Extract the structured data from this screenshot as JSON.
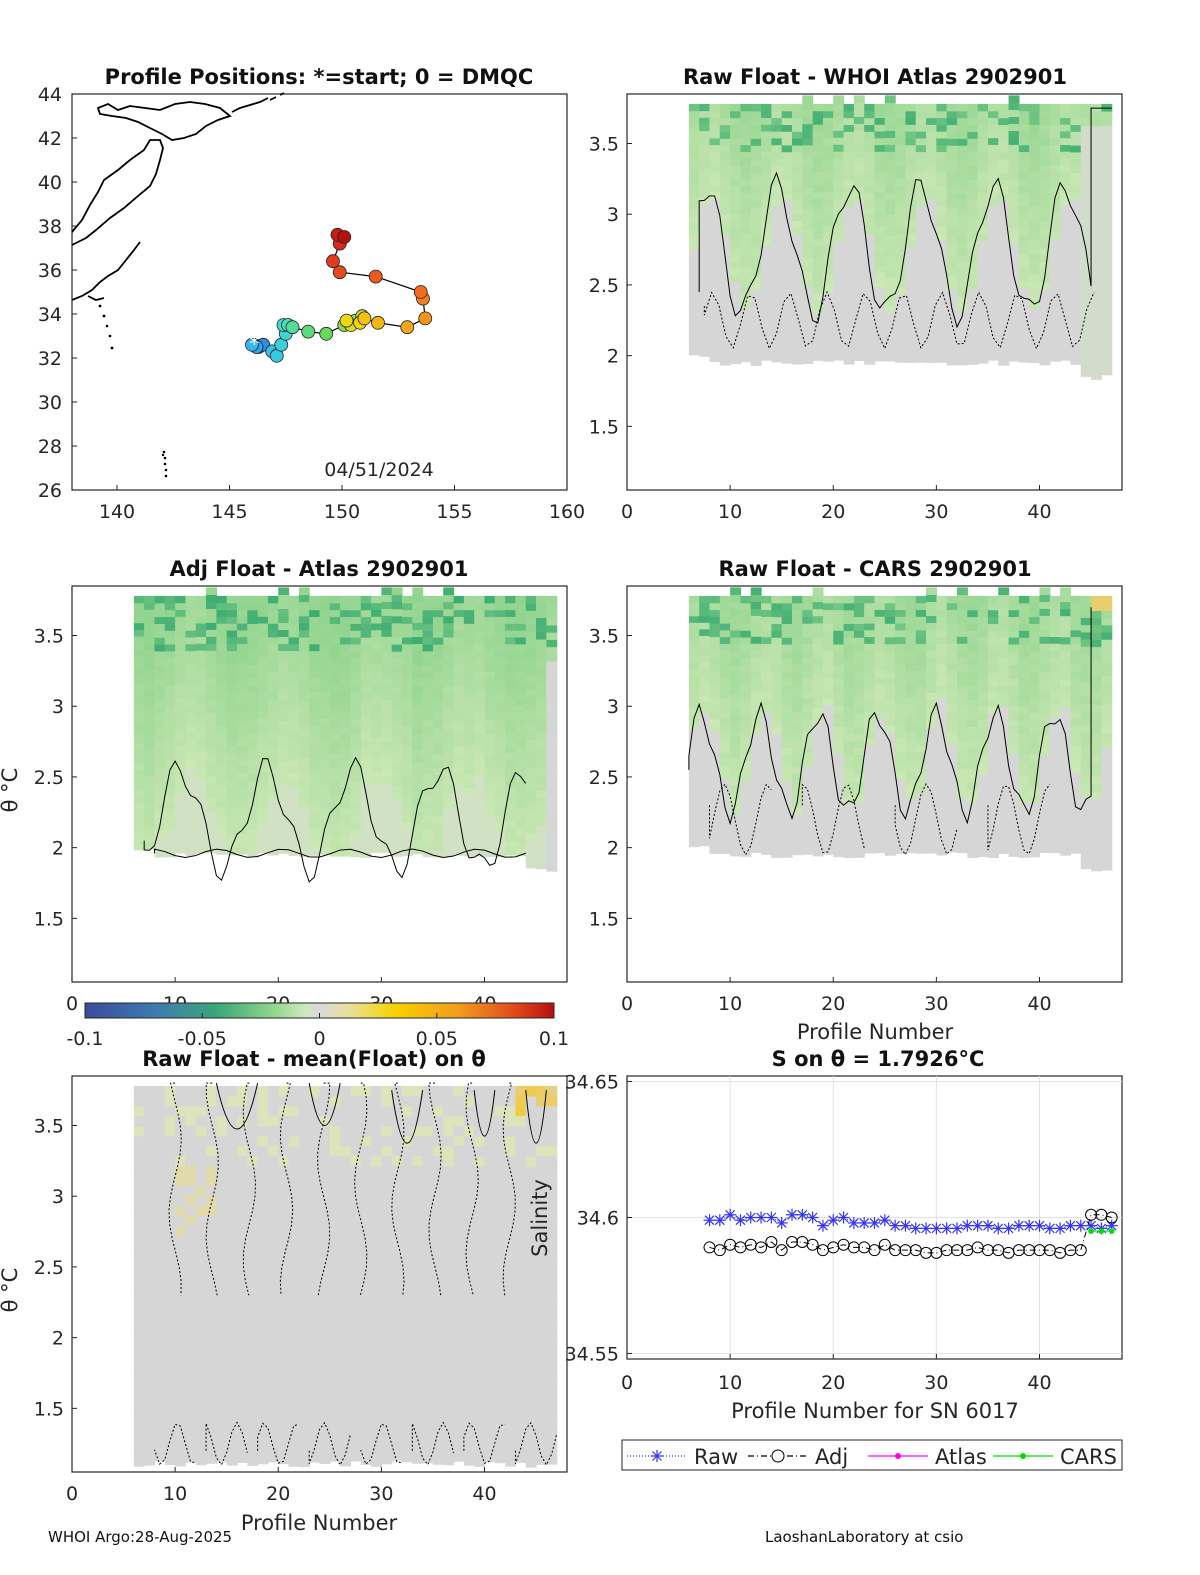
{
  "footer": {
    "left": "WHOI Argo:28-Aug-2025",
    "right": "LaoshanLaboratory at csio"
  },
  "colors": {
    "raw": "#3333ff",
    "adj": "#000000",
    "atlas": "#ff00ff",
    "cars": "#00dd00",
    "land": "#000000",
    "nodata": "#d6d6d6"
  },
  "chart_data": [
    {
      "id": "map",
      "type": "scatter",
      "title": "Profile Positions: *=start; 0 = DMQC",
      "annotation": "04/51/2024",
      "xlim": [
        138,
        160
      ],
      "ylim": [
        26,
        44
      ],
      "xticks": [
        140,
        145,
        150,
        155,
        160
      ],
      "yticks": [
        26,
        28,
        30,
        32,
        34,
        36,
        38,
        40,
        42,
        44
      ],
      "track": [
        [
          146.1,
          32.6
        ],
        [
          146.3,
          32.5
        ],
        [
          146.5,
          32.6
        ],
        [
          146.2,
          32.5
        ],
        [
          146.0,
          32.6
        ],
        [
          146.9,
          32.3
        ],
        [
          147.1,
          32.1
        ],
        [
          147.3,
          32.6
        ],
        [
          147.5,
          33.1
        ],
        [
          147.4,
          33.5
        ],
        [
          147.6,
          33.5
        ],
        [
          147.8,
          33.4
        ],
        [
          148.5,
          33.2
        ],
        [
          149.3,
          33.1
        ],
        [
          150.1,
          33.5
        ],
        [
          150.6,
          33.7
        ],
        [
          150.9,
          33.9
        ],
        [
          150.4,
          33.5
        ],
        [
          150.2,
          33.7
        ],
        [
          150.8,
          33.6
        ],
        [
          151.0,
          33.8
        ],
        [
          151.6,
          33.6
        ],
        [
          152.9,
          33.4
        ],
        [
          153.7,
          33.8
        ],
        [
          153.6,
          34.7
        ],
        [
          153.5,
          35.0
        ],
        [
          151.5,
          35.7
        ],
        [
          149.9,
          35.9
        ],
        [
          149.6,
          36.4
        ],
        [
          149.9,
          37.2
        ],
        [
          149.8,
          37.6
        ],
        [
          150.1,
          37.5
        ]
      ]
    },
    {
      "id": "raw-whoi",
      "type": "heatmap",
      "title": "Raw Float - WHOI Atlas  2902901",
      "xlim": [
        0,
        48
      ],
      "ylim": [
        1.05,
        3.85
      ],
      "xticks": [
        0,
        10,
        20,
        30,
        40
      ],
      "yticks": [
        1.5,
        2,
        2.5,
        3,
        3.5
      ],
      "ytick_labels": [
        "1.5",
        "2",
        "2.5",
        "3",
        "3.5"
      ],
      "profiles": [
        6,
        47
      ],
      "colorbar_range": [
        -0.1,
        0.1
      ]
    },
    {
      "id": "adj-atlas",
      "type": "heatmap",
      "title": "Adj Float - Atlas  2902901",
      "ylabel": "θ °C",
      "xlim": [
        0,
        48
      ],
      "ylim": [
        1.05,
        3.85
      ],
      "xticks": [
        0,
        10,
        20,
        30,
        40
      ],
      "yticks": [
        1.5,
        2,
        2.5,
        3,
        3.5
      ],
      "ytick_labels": [
        "1.5",
        "2",
        "2.5",
        "3",
        "3.5"
      ],
      "profiles": [
        6,
        47
      ],
      "colorbar_range": [
        -0.1,
        0.1
      ]
    },
    {
      "id": "raw-cars",
      "type": "heatmap",
      "title": "Raw Float - CARS  2902901",
      "xlabel": "Profile Number",
      "xlim": [
        0,
        48
      ],
      "ylim": [
        1.05,
        3.85
      ],
      "xticks": [
        0,
        10,
        20,
        30,
        40
      ],
      "yticks": [
        1.5,
        2,
        2.5,
        3,
        3.5
      ],
      "ytick_labels": [
        "1.5",
        "2",
        "2.5",
        "3",
        "3.5"
      ],
      "profiles": [
        6,
        47
      ],
      "colorbar_range": [
        -0.1,
        0.1
      ]
    },
    {
      "id": "raw-mean",
      "type": "heatmap",
      "title": "Raw Float - mean(Float) on θ",
      "ylabel": "θ °C",
      "xlabel": "Profile Number",
      "xlim": [
        0,
        48
      ],
      "ylim": [
        1.05,
        3.85
      ],
      "xticks": [
        0,
        10,
        20,
        30,
        40
      ],
      "yticks": [
        1.5,
        2,
        2.5,
        3,
        3.5
      ],
      "ytick_labels": [
        "1.5",
        "2",
        "2.5",
        "3",
        "3.5"
      ],
      "profiles": [
        6,
        47
      ],
      "colorbar_range": [
        -0.1,
        0.1
      ]
    },
    {
      "id": "colorbar",
      "type": "colorbar",
      "range": [
        -0.1,
        0.1
      ],
      "ticks": [
        -0.1,
        -0.05,
        0,
        0.05,
        0.1
      ],
      "tick_labels": [
        "-0.1",
        "-0.05",
        "0",
        "0.05",
        "0.1"
      ]
    },
    {
      "id": "salinity",
      "type": "line",
      "title": "S on θ = 1.7926°C",
      "xlabel": "Profile Number for SN 6017",
      "ylabel": "Salinity",
      "xlim": [
        0,
        48
      ],
      "ylim": [
        34.548,
        34.652
      ],
      "xticks": [
        0,
        10,
        20,
        30,
        40
      ],
      "yticks": [
        34.55,
        34.6,
        34.65
      ],
      "ytick_labels": [
        "34.55",
        "34.6",
        "34.65"
      ],
      "grid": true,
      "legend": [
        "Raw",
        "Adj",
        "Atlas",
        "CARS"
      ],
      "series": [
        {
          "name": "Raw",
          "x": [
            8,
            9,
            10,
            11,
            12,
            13,
            14,
            15,
            16,
            17,
            18,
            19,
            20,
            21,
            22,
            23,
            24,
            25,
            26,
            27,
            28,
            29,
            30,
            31,
            32,
            33,
            34,
            35,
            36,
            37,
            38,
            39,
            40,
            41,
            42,
            43,
            44,
            45,
            46,
            47
          ],
          "values": [
            34.599,
            34.599,
            34.601,
            34.599,
            34.6,
            34.6,
            34.6,
            34.598,
            34.601,
            34.601,
            34.6,
            34.597,
            34.599,
            34.6,
            34.598,
            34.598,
            34.598,
            34.599,
            34.597,
            34.597,
            34.596,
            34.596,
            34.596,
            34.596,
            34.596,
            34.597,
            34.597,
            34.597,
            34.596,
            34.596,
            34.597,
            34.597,
            34.597,
            34.596,
            34.596,
            34.597,
            34.597,
            34.597,
            34.596,
            34.597
          ]
        },
        {
          "name": "Adj",
          "x": [
            8,
            9,
            10,
            11,
            12,
            13,
            14,
            15,
            16,
            17,
            18,
            19,
            20,
            21,
            22,
            23,
            24,
            25,
            26,
            27,
            28,
            29,
            30,
            31,
            32,
            33,
            34,
            35,
            36,
            37,
            38,
            39,
            40,
            41,
            42,
            43,
            44,
            45,
            46,
            47
          ],
          "values": [
            34.589,
            34.588,
            34.59,
            34.589,
            34.59,
            34.589,
            34.591,
            34.588,
            34.591,
            34.591,
            34.59,
            34.588,
            34.589,
            34.59,
            34.589,
            34.589,
            34.588,
            34.59,
            34.588,
            34.588,
            34.588,
            34.587,
            34.587,
            34.588,
            34.588,
            34.588,
            34.589,
            34.588,
            34.588,
            34.587,
            34.588,
            34.588,
            34.588,
            34.588,
            34.587,
            34.588,
            34.588,
            34.601,
            34.601,
            34.6
          ]
        },
        {
          "name": "Atlas",
          "x": [],
          "values": []
        },
        {
          "name": "CARS",
          "x": [
            45,
            46,
            47
          ],
          "values": [
            34.595,
            34.595,
            34.595
          ]
        }
      ]
    }
  ]
}
